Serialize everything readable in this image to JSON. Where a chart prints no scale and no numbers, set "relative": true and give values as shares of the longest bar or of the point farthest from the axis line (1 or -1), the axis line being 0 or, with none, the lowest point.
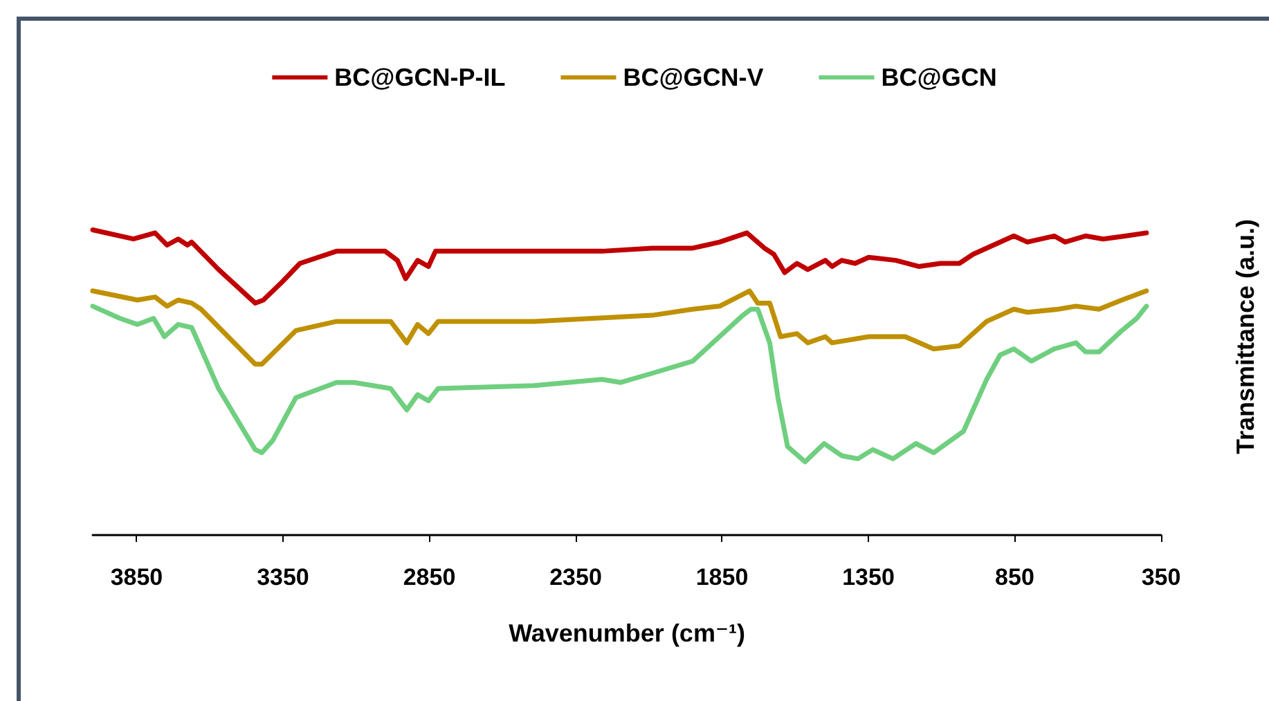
{
  "chart_data": {
    "type": "line",
    "relative": true,
    "xlabel": "Wavenumber (cm⁻¹)",
    "ylabel": "Transmittance (a.u.)",
    "xlim": [
      4000,
      350
    ],
    "xticks": [
      3850,
      3350,
      2850,
      2350,
      1850,
      1350,
      850,
      350
    ],
    "grid": false,
    "legend": "top",
    "marker": "none",
    "line_style": "solid",
    "series": [
      {
        "name": "BC@GCN-P-IL",
        "color": "#c00000",
        "x": [
          4000,
          3861,
          3787,
          3746,
          3708,
          3676,
          3662,
          3570,
          3445,
          3417,
          3352,
          3292,
          3167,
          3001,
          2959,
          2931,
          2890,
          2853,
          2829,
          2492,
          2260,
          2089,
          1950,
          1858,
          1765,
          1705,
          1673,
          1636,
          1594,
          1557,
          1497,
          1474,
          1441,
          1395,
          1349,
          1256,
          1178,
          1103,
          1039,
          992,
          853,
          807,
          715,
          678,
          608,
          548,
          470,
          400
        ],
        "values": [
          1.0,
          0.97,
          0.99,
          0.95,
          0.97,
          0.95,
          0.96,
          0.87,
          0.76,
          0.77,
          0.83,
          0.89,
          0.93,
          0.93,
          0.9,
          0.84,
          0.9,
          0.88,
          0.93,
          0.93,
          0.93,
          0.94,
          0.94,
          0.96,
          0.99,
          0.94,
          0.92,
          0.86,
          0.89,
          0.87,
          0.9,
          0.88,
          0.9,
          0.89,
          0.91,
          0.9,
          0.88,
          0.89,
          0.89,
          0.92,
          0.98,
          0.96,
          0.98,
          0.96,
          0.98,
          0.97,
          0.98,
          0.99
        ]
      },
      {
        "name": "BC@GCN-V",
        "color": "#bf9000",
        "x": [
          4000,
          3847,
          3787,
          3746,
          3708,
          3662,
          3630,
          3445,
          3422,
          3306,
          3167,
          2982,
          2927,
          2890,
          2853,
          2820,
          2492,
          2089,
          1950,
          1858,
          1756,
          1728,
          1687,
          1650,
          1594,
          1557,
          1497,
          1474,
          1349,
          1224,
          1127,
          1039,
          946,
          853,
          807,
          701,
          641,
          562,
          484,
          400
        ],
        "values": [
          0.8,
          0.77,
          0.78,
          0.75,
          0.77,
          0.76,
          0.74,
          0.56,
          0.56,
          0.67,
          0.7,
          0.7,
          0.63,
          0.69,
          0.66,
          0.7,
          0.7,
          0.72,
          0.74,
          0.75,
          0.8,
          0.76,
          0.76,
          0.65,
          0.66,
          0.63,
          0.65,
          0.63,
          0.65,
          0.65,
          0.61,
          0.62,
          0.7,
          0.74,
          0.73,
          0.74,
          0.75,
          0.74,
          0.77,
          0.8
        ]
      },
      {
        "name": "BC@GCN",
        "color": "#6fcf7f",
        "x": [
          4000,
          3907,
          3847,
          3792,
          3755,
          3708,
          3662,
          3648,
          3570,
          3445,
          3422,
          3385,
          3306,
          3167,
          3107,
          2982,
          2927,
          2890,
          2853,
          2820,
          2492,
          2260,
          2196,
          2089,
          1950,
          1779,
          1751,
          1728,
          1687,
          1659,
          1626,
          1566,
          1501,
          1441,
          1386,
          1335,
          1266,
          1187,
          1127,
          1025,
          946,
          900,
          853,
          793,
          715,
          641,
          608,
          562,
          484,
          433,
          400
        ],
        "values": [
          0.75,
          0.71,
          0.69,
          0.71,
          0.65,
          0.69,
          0.68,
          0.65,
          0.48,
          0.28,
          0.27,
          0.31,
          0.45,
          0.5,
          0.5,
          0.48,
          0.41,
          0.46,
          0.44,
          0.48,
          0.49,
          0.51,
          0.5,
          0.53,
          0.57,
          0.72,
          0.74,
          0.74,
          0.63,
          0.45,
          0.29,
          0.24,
          0.3,
          0.26,
          0.25,
          0.28,
          0.25,
          0.3,
          0.27,
          0.34,
          0.51,
          0.59,
          0.61,
          0.57,
          0.61,
          0.63,
          0.6,
          0.6,
          0.67,
          0.71,
          0.75
        ]
      }
    ]
  }
}
